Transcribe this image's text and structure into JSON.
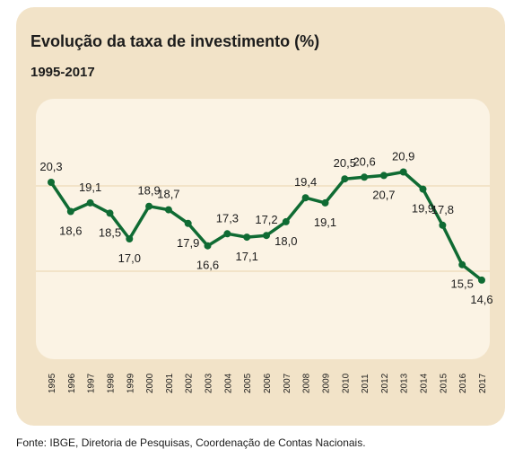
{
  "title": "Evolução da taxa de investimento (%)",
  "subtitle": "1995-2017",
  "source": "Fonte: IBGE, Diretoria de Pesquisas, Coordenação de Contas Nacionais.",
  "colors": {
    "line": "#0f6b33",
    "card": "#f2e3c8",
    "plot": "#fbf3e4",
    "grid": "#f2e3c8",
    "text": "#1c1c1c"
  },
  "chart_data": {
    "type": "line",
    "x": [
      "1995",
      "1996",
      "1997",
      "1998",
      "1999",
      "2000",
      "2001",
      "2002",
      "2003",
      "2004",
      "2005",
      "2006",
      "2007",
      "2008",
      "2009",
      "2010",
      "2011",
      "2012",
      "2013",
      "2014",
      "2015",
      "2016",
      "2017"
    ],
    "values": [
      20.3,
      18.6,
      19.1,
      18.5,
      17.0,
      18.9,
      18.7,
      17.9,
      16.6,
      17.3,
      17.1,
      17.2,
      18.0,
      19.4,
      19.1,
      20.5,
      20.6,
      20.7,
      20.9,
      19.9,
      17.8,
      15.5,
      14.6
    ],
    "labels": [
      "20,3",
      "18,6",
      "19,1",
      "18,5",
      "17,0",
      "18,9",
      "18,7",
      "17,9",
      "16,6",
      "17,3",
      "17,1",
      "17,2",
      "18,0",
      "19,4",
      "19,1",
      "20,5",
      "20,6",
      "20,7",
      "20,9",
      "19,9",
      "17,8",
      "15,5",
      "14,6"
    ],
    "label_positions": [
      "above",
      "below",
      "above",
      "below",
      "below",
      "above",
      "above",
      "below",
      "below",
      "above",
      "below",
      "above",
      "below",
      "above",
      "below",
      "above",
      "above",
      "below",
      "above",
      "below",
      "above",
      "below",
      "below"
    ],
    "grid": true,
    "legend": "none"
  }
}
